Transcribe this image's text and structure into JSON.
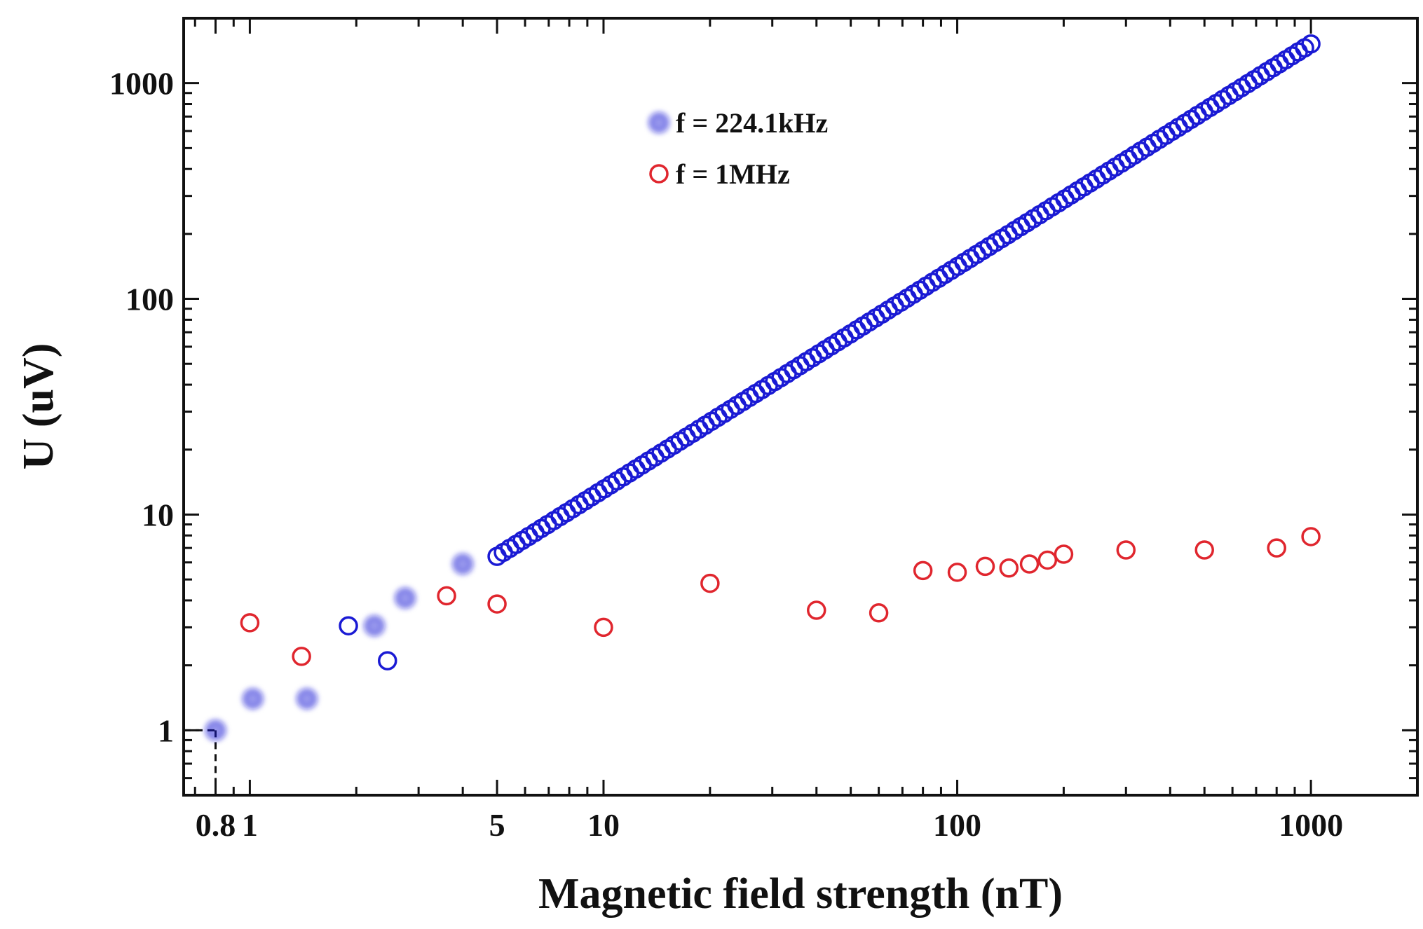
{
  "chart_data": {
    "type": "scatter",
    "x_scale": "log",
    "y_scale": "log",
    "xlabel": "Magnetic field strength (nT)",
    "ylabel": "U (uV)",
    "xlim": [
      0.65,
      2000
    ],
    "ylim": [
      0.5,
      2000
    ],
    "x_ticks": [
      {
        "value": 0.8,
        "label": "0.8"
      },
      {
        "value": 1,
        "label": "1"
      },
      {
        "value": 5,
        "label": "5"
      },
      {
        "value": 10,
        "label": "10"
      },
      {
        "value": 100,
        "label": "100"
      },
      {
        "value": 1000,
        "label": "1000"
      }
    ],
    "y_ticks": [
      {
        "value": 1,
        "label": "1"
      },
      {
        "value": 10,
        "label": "10"
      },
      {
        "value": 100,
        "label": "100"
      },
      {
        "value": 1000,
        "label": "1000"
      }
    ],
    "detection_limit": {
      "x": 0.8,
      "y": 1
    },
    "legend": {
      "position": "top-center",
      "entries": [
        {
          "label": "f = 224.1kHz",
          "color": "#1a1ad4",
          "style": "blurred-filled"
        },
        {
          "label": "f = 1MHz",
          "color": "#e0262e",
          "style": "open-circle"
        }
      ]
    },
    "series": [
      {
        "name": "f = 224.1kHz",
        "color": "#1a1ad4",
        "low_field_points": [
          {
            "x": 0.8,
            "y": 1.0,
            "style": "blurred"
          },
          {
            "x": 1.02,
            "y": 1.4,
            "style": "blurred"
          },
          {
            "x": 1.45,
            "y": 1.4,
            "style": "blurred"
          },
          {
            "x": 1.9,
            "y": 3.05,
            "style": "open"
          },
          {
            "x": 2.25,
            "y": 3.05,
            "style": "blurred"
          },
          {
            "x": 2.45,
            "y": 2.1,
            "style": "open"
          },
          {
            "x": 2.75,
            "y": 4.1,
            "style": "blurred"
          },
          {
            "x": 4.0,
            "y": 5.9,
            "style": "blurred"
          }
        ],
        "linear_range": {
          "x_start": 5,
          "x_end": 1000,
          "y_start": 6.4,
          "y_end": 1520,
          "n_points": 130,
          "style": "open"
        }
      },
      {
        "name": "f = 1MHz",
        "color": "#e0262e",
        "points": [
          {
            "x": 1.0,
            "y": 3.15
          },
          {
            "x": 1.4,
            "y": 2.2
          },
          {
            "x": 3.6,
            "y": 4.2
          },
          {
            "x": 5.0,
            "y": 3.85
          },
          {
            "x": 10,
            "y": 3.0
          },
          {
            "x": 20,
            "y": 4.8
          },
          {
            "x": 40,
            "y": 3.6
          },
          {
            "x": 60,
            "y": 3.5
          },
          {
            "x": 80,
            "y": 5.5
          },
          {
            "x": 100,
            "y": 5.4
          },
          {
            "x": 120,
            "y": 5.75
          },
          {
            "x": 140,
            "y": 5.65
          },
          {
            "x": 160,
            "y": 5.9
          },
          {
            "x": 180,
            "y": 6.15
          },
          {
            "x": 200,
            "y": 6.55
          },
          {
            "x": 300,
            "y": 6.85
          },
          {
            "x": 500,
            "y": 6.85
          },
          {
            "x": 800,
            "y": 7.0
          },
          {
            "x": 1000,
            "y": 7.9
          }
        ]
      }
    ]
  }
}
